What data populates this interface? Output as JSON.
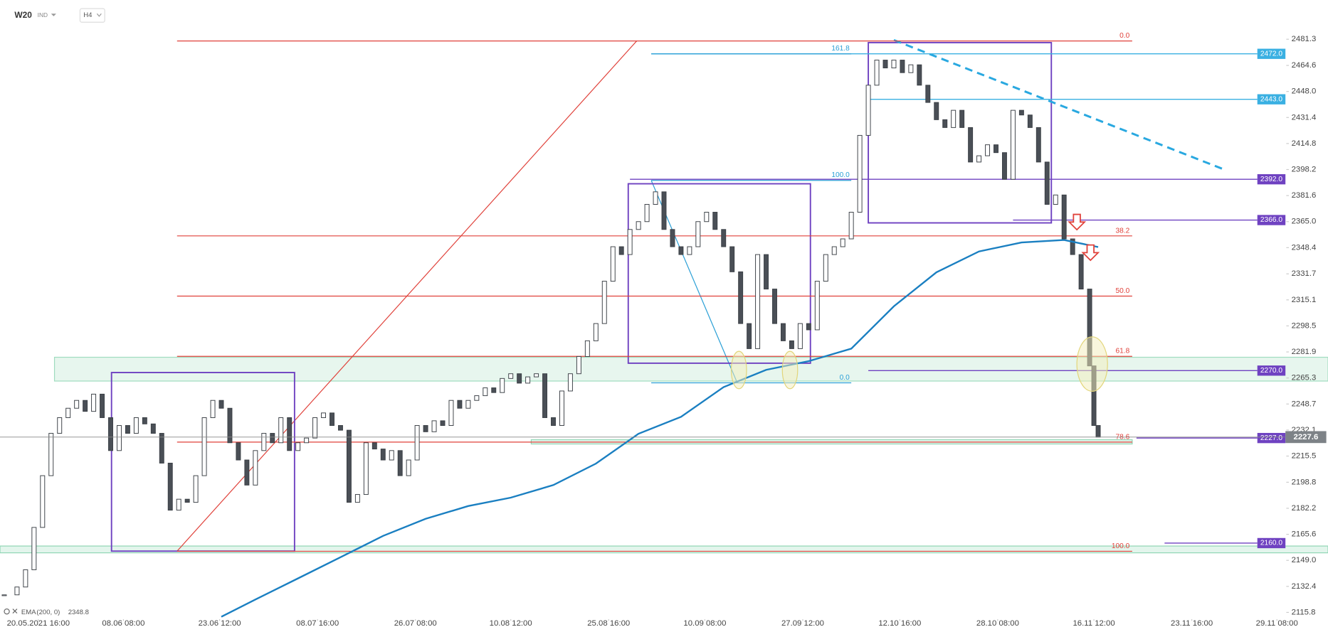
{
  "header": {
    "symbol": "W20",
    "market": "IND",
    "timeframe": "H4"
  },
  "chart_data": {
    "type": "candlestick",
    "x": [
      1,
      4,
      6,
      8,
      10,
      12,
      14,
      16,
      18,
      20,
      22,
      24,
      26,
      28,
      30,
      32,
      34,
      36,
      38,
      40,
      42,
      44,
      46,
      48,
      50,
      52,
      54,
      56,
      58,
      60,
      62,
      64,
      66,
      68,
      70,
      72,
      74,
      76,
      78,
      80,
      82,
      84,
      86,
      88,
      90,
      92,
      94,
      96,
      98,
      100,
      102,
      104,
      106,
      108,
      110,
      112,
      114,
      116,
      118,
      120,
      122,
      124,
      126,
      128,
      130,
      132,
      134,
      136,
      138,
      140,
      142,
      144,
      146,
      148,
      150,
      152,
      154,
      156,
      158,
      160,
      162,
      164,
      166,
      168,
      170,
      172,
      174,
      176,
      178,
      180,
      182,
      184,
      186,
      188,
      190,
      192,
      194,
      196,
      198,
      200,
      202,
      204,
      206,
      208,
      210,
      212,
      214,
      216,
      218,
      220,
      222,
      224,
      226,
      228,
      230,
      232,
      234,
      236,
      238,
      240,
      242,
      244,
      246,
      248,
      250,
      252,
      254,
      256,
      257,
      258
    ],
    "close": [
      2127,
      2132,
      2143,
      2170,
      2203,
      2230,
      2240,
      2246,
      2251,
      2244,
      2255,
      2240,
      2219,
      2235,
      2230,
      2240,
      2236,
      2230,
      2211,
      2181,
      2188,
      2186,
      2203,
      2240,
      2251,
      2246,
      2224,
      2213,
      2197,
      2219,
      2230,
      2224,
      2240,
      2219,
      2224,
      2227,
      2240,
      2243,
      2235,
      2232,
      2186,
      2191,
      2224,
      2220,
      2213,
      2219,
      2203,
      2213,
      2235,
      2231,
      2238,
      2235,
      2251,
      2246,
      2251,
      2254,
      2259,
      2256,
      2265,
      2268,
      2262,
      2266,
      2268,
      2240,
      2235,
      2257,
      2268,
      2279,
      2289,
      2300,
      2327,
      2349,
      2344,
      2360,
      2365,
      2376,
      2384,
      2360,
      2349,
      2344,
      2349,
      2365,
      2371,
      2360,
      2349,
      2333,
      2300,
      2284,
      2344,
      2322,
      2300,
      2289,
      2284,
      2300,
      2296,
      2327,
      2344,
      2349,
      2354,
      2371,
      2420,
      2452,
      2468,
      2463,
      2468,
      2460,
      2465,
      2452,
      2441,
      2430,
      2425,
      2436,
      2425,
      2403,
      2407,
      2414,
      2409,
      2392,
      2436,
      2433,
      2425,
      2403,
      2376,
      2382,
      2354,
      2344,
      2322,
      2273,
      2235,
      2227.6
    ],
    "up_color": "#ffffff",
    "down_color": "#4a4f56",
    "xlim": [
      0,
      301
    ],
    "ylim": [
      2111.5,
      2490
    ],
    "grid": false,
    "xticks": [
      {
        "value": 9,
        "label": "20.05.2021 16:00"
      },
      {
        "value": 29,
        "label": "08.06 08:00"
      },
      {
        "value": 51.6,
        "label": "23.06 12:00"
      },
      {
        "value": 74.6,
        "label": "08.07 16:00"
      },
      {
        "value": 97.6,
        "label": "26.07 08:00"
      },
      {
        "value": 120,
        "label": "10.08 12:00"
      },
      {
        "value": 143,
        "label": "25.08 16:00"
      },
      {
        "value": 165.6,
        "label": "10.09 08:00"
      },
      {
        "value": 188.6,
        "label": "27.09 12:00"
      },
      {
        "value": 211.4,
        "label": "12.10 16:00"
      },
      {
        "value": 234.4,
        "label": "28.10 08:00"
      },
      {
        "value": 257,
        "label": "16.11 12:00"
      },
      {
        "value": 280,
        "label": "23.11 16:00"
      },
      {
        "value": 300,
        "label": "29.11 08:00"
      }
    ],
    "yticks": [
      2481.3,
      2464.6,
      {
        "value": 2448,
        "label": "2448.0"
      },
      2431.4,
      2414.8,
      2398.2,
      2381.6,
      {
        "value": 2365,
        "label": "2365.0"
      },
      2348.4,
      2331.7,
      2315.1,
      2298.5,
      2281.9,
      2265.3,
      2248.7,
      2232.1,
      2215.5,
      2198.8,
      2182.2,
      2165.6,
      {
        "value": 2149,
        "label": "2149.0"
      },
      2132.4,
      2115.8
    ],
    "indicator": {
      "name": "EMA",
      "params": "(200, 0)",
      "color": "#1a7fc1",
      "x": [
        52,
        60,
        70,
        80,
        90,
        100,
        110,
        120,
        130,
        140,
        150,
        160,
        170,
        180,
        190,
        200,
        210,
        220,
        230,
        240,
        250,
        258
      ],
      "values": [
        2113,
        2124,
        2137.5,
        2151,
        2164.6,
        2175.5,
        2183.6,
        2189,
        2197,
        2210.7,
        2229.7,
        2240.5,
        2259.5,
        2270.5,
        2276,
        2284,
        2311,
        2332.7,
        2346,
        2351.7,
        2353.3,
        2348.8
      ]
    },
    "levels": {
      "values": [
        {
          "value": 2472,
          "label": "2472.0"
        },
        {
          "value": 2443,
          "label": "2443.0"
        },
        {
          "value": 2392,
          "label": "2392.0"
        },
        {
          "value": 2366,
          "label": "2366.0"
        },
        {
          "value": 2270,
          "label": "2270.0"
        },
        {
          "value": 2227,
          "label": "2227.0"
        },
        {
          "value": 2160,
          "label": "2160.0"
        }
      ],
      "colors": [
        "#3ab0e2",
        "#3ab0e2",
        "#6f42c1",
        "#6f42c1",
        "#6f42c1",
        "#6f42c1",
        "#6f42c1"
      ]
    },
    "fib_red": {
      "color": "#e0413a",
      "ratios": [
        {
          "value": 0,
          "label": "0.0"
        },
        38.2,
        {
          "value": 50,
          "label": "50.0"
        },
        61.8,
        78.6,
        {
          "value": 100,
          "label": "100.0"
        }
      ],
      "prices": [
        2480.2,
        2355.9,
        2317.5,
        2279.1,
        2224.4,
        2154.8
      ]
    },
    "fib_blue": {
      "color": "#2a9fd6",
      "ratios": [
        161.8,
        {
          "value": 100,
          "label": "100.0"
        },
        {
          "value": 0,
          "label": "0.0"
        }
      ],
      "prices": [
        2472,
        2391.3,
        2262.2
      ]
    }
  }
}
